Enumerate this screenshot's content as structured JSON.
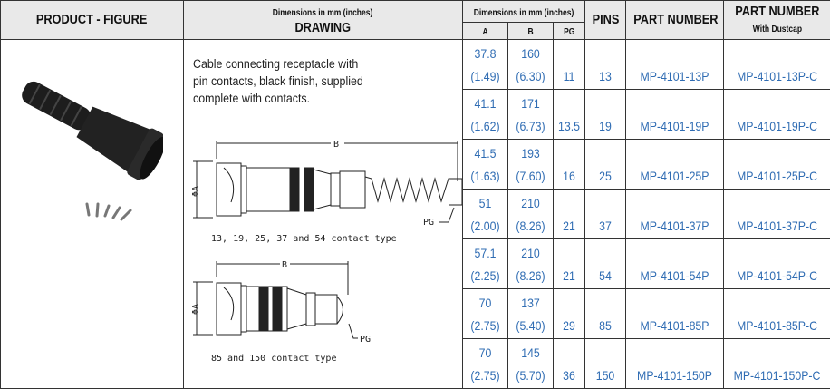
{
  "header": {
    "product_figure": "PRODUCT - FIGURE",
    "drawing_sub": "Dimensions in mm (inches)",
    "drawing": "DRAWING",
    "dims": "Dimensions in mm (inches)",
    "col_a": "A",
    "col_b": "B",
    "col_pg": "PG",
    "pins": "PINS",
    "part_number": "PART NUMBER",
    "part_number_dustcap": "PART NUMBER",
    "dustcap_sub": "With Dustcap"
  },
  "description": [
    "Cable connecting receptacle with",
    "pin contacts, black finish, supplied",
    "complete with contacts."
  ],
  "drawing": {
    "dim_b": "B",
    "dim_a": "ΦA",
    "pg": "PG",
    "caption1": "13, 19, 25, 37 and 54 contact type",
    "caption2": "85 and 150 contact type"
  },
  "colors": {
    "value_blue": "#2f6cb3",
    "header_bg": "#e9e9e9"
  },
  "rows": [
    {
      "a_mm": "37.8",
      "a_in": "(1.49)",
      "b_mm": "160",
      "b_in": "(6.30)",
      "pg": "11",
      "pins": "13",
      "pn": "MP-4101-13P",
      "pn_c": "MP-4101-13P-C"
    },
    {
      "a_mm": "41.1",
      "a_in": "(1.62)",
      "b_mm": "171",
      "b_in": "(6.73)",
      "pg": "13.5",
      "pins": "19",
      "pn": "MP-4101-19P",
      "pn_c": "MP-4101-19P-C"
    },
    {
      "a_mm": "41.5",
      "a_in": "(1.63)",
      "b_mm": "193",
      "b_in": "(7.60)",
      "pg": "16",
      "pins": "25",
      "pn": "MP-4101-25P",
      "pn_c": "MP-4101-25P-C"
    },
    {
      "a_mm": "51",
      "a_in": "(2.00)",
      "b_mm": "210",
      "b_in": "(8.26)",
      "pg": "21",
      "pins": "37",
      "pn": "MP-4101-37P",
      "pn_c": "MP-4101-37P-C"
    },
    {
      "a_mm": "57.1",
      "a_in": "(2.25)",
      "b_mm": "210",
      "b_in": "(8.26)",
      "pg": "21",
      "pins": "54",
      "pn": "MP-4101-54P",
      "pn_c": "MP-4101-54P-C"
    },
    {
      "a_mm": "70",
      "a_in": "(2.75)",
      "b_mm": "137",
      "b_in": "(5.40)",
      "pg": "29",
      "pins": "85",
      "pn": "MP-4101-85P",
      "pn_c": "MP-4101-85P-C"
    },
    {
      "a_mm": "70",
      "a_in": "(2.75)",
      "b_mm": "145",
      "b_in": "(5.70)",
      "pg": "36",
      "pins": "150",
      "pn": "MP-4101-150P",
      "pn_c": "MP-4101-150P-C"
    }
  ]
}
